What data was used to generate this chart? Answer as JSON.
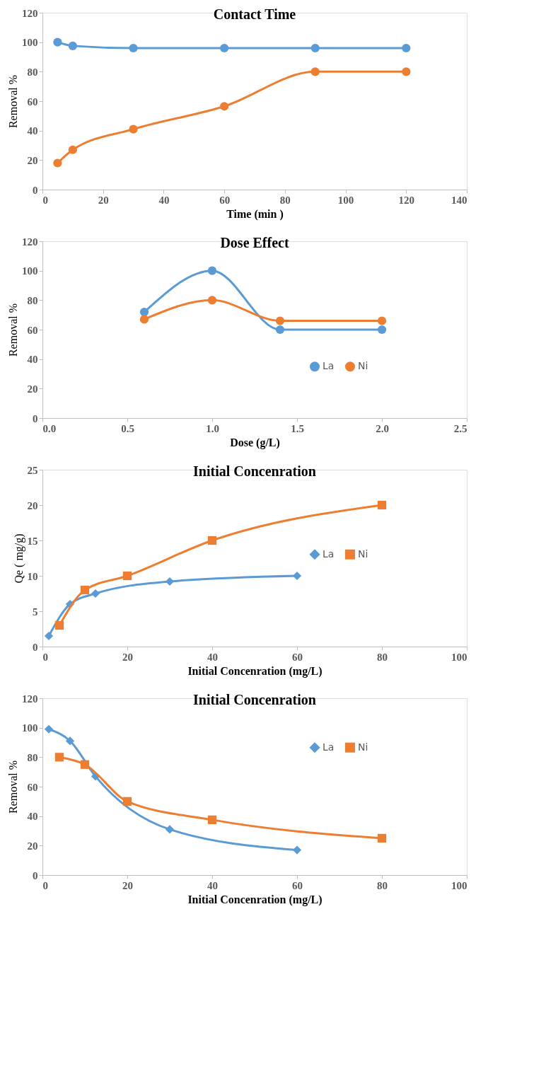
{
  "chart_data": [
    {
      "type": "line",
      "title": "Contact Time",
      "xlabel": "Time (min )",
      "ylabel": "Removal %",
      "xlim": [
        0,
        140
      ],
      "xticks": [
        0,
        20,
        40,
        60,
        80,
        100,
        120,
        140
      ],
      "ylim": [
        0,
        120
      ],
      "yticks": [
        0,
        20,
        40,
        60,
        80,
        100,
        120
      ],
      "grid": false,
      "marker": "circle",
      "x": [
        5,
        10,
        30,
        60,
        90,
        120
      ],
      "series": [
        {
          "color": "#5b9bd5",
          "values": [
            100,
            97.5,
            96,
            96,
            96,
            96
          ]
        },
        {
          "color": "#ed7d31",
          "values": [
            18,
            27,
            41,
            56.5,
            80,
            80
          ]
        }
      ]
    },
    {
      "type": "line",
      "title": "Dose Effect",
      "xlabel": "Dose (g/L)",
      "ylabel": "Removal %",
      "xlim": [
        0,
        2.5
      ],
      "xticks": [
        {
          "value": 0,
          "label": "0.0"
        },
        0.5,
        {
          "value": 1,
          "label": "1.0"
        },
        1.5,
        {
          "value": 2,
          "label": "2.0"
        },
        2.5
      ],
      "ylim": [
        0,
        120
      ],
      "yticks": [
        0,
        20,
        40,
        60,
        80,
        100,
        120
      ],
      "grid": false,
      "marker": "circle",
      "legend": "bottom right",
      "x": [
        0.6,
        1,
        1.4,
        2
      ],
      "series": [
        {
          "name": "La",
          "color": "#5b9bd5",
          "values": [
            72,
            100,
            60,
            60
          ]
        },
        {
          "name": "Ni",
          "color": "#ed7d31",
          "values": [
            67,
            80,
            66,
            66
          ]
        }
      ]
    },
    {
      "type": "line",
      "title": "Initial  Concenration",
      "xlabel": "Initial  Concenration (mg/L)",
      "ylabel": "Qe ( mg/g)",
      "xlim": [
        0,
        100
      ],
      "xticks": [
        0,
        20,
        40,
        60,
        80,
        100
      ],
      "ylim": [
        0,
        25
      ],
      "yticks": [
        0,
        5,
        10,
        15,
        20,
        25
      ],
      "grid": false,
      "legend": "right",
      "series": [
        {
          "name": "La",
          "color": "#5b9bd5",
          "marker": "diamond",
          "x": [
            1.5,
            6.5,
            12.5,
            30,
            60
          ],
          "values": [
            1.5,
            6,
            7.5,
            9.2,
            10
          ]
        },
        {
          "name": "Ni",
          "color": "#ed7d31",
          "marker": "square",
          "x": [
            4,
            10,
            20,
            40,
            80
          ],
          "values": [
            3,
            8,
            10,
            15,
            20
          ]
        }
      ]
    },
    {
      "type": "line",
      "title": "Initial  Concenration",
      "xlabel": "Initial  Concenration (mg/L)",
      "ylabel": "Removal %",
      "xlim": [
        0,
        100
      ],
      "xticks": [
        0,
        20,
        40,
        60,
        80,
        100
      ],
      "ylim": [
        0,
        120
      ],
      "yticks": [
        0,
        20,
        40,
        60,
        80,
        100,
        120
      ],
      "grid": false,
      "legend": "top right",
      "series": [
        {
          "name": "La",
          "color": "#5b9bd5",
          "marker": "diamond",
          "x": [
            1.5,
            6.5,
            12.5,
            30,
            60
          ],
          "values": [
            99,
            91,
            67,
            31,
            17
          ]
        },
        {
          "name": "Ni",
          "color": "#ed7d31",
          "marker": "square",
          "x": [
            4,
            10,
            20,
            40,
            80
          ],
          "values": [
            80,
            75,
            50,
            37.5,
            25
          ]
        }
      ]
    }
  ]
}
